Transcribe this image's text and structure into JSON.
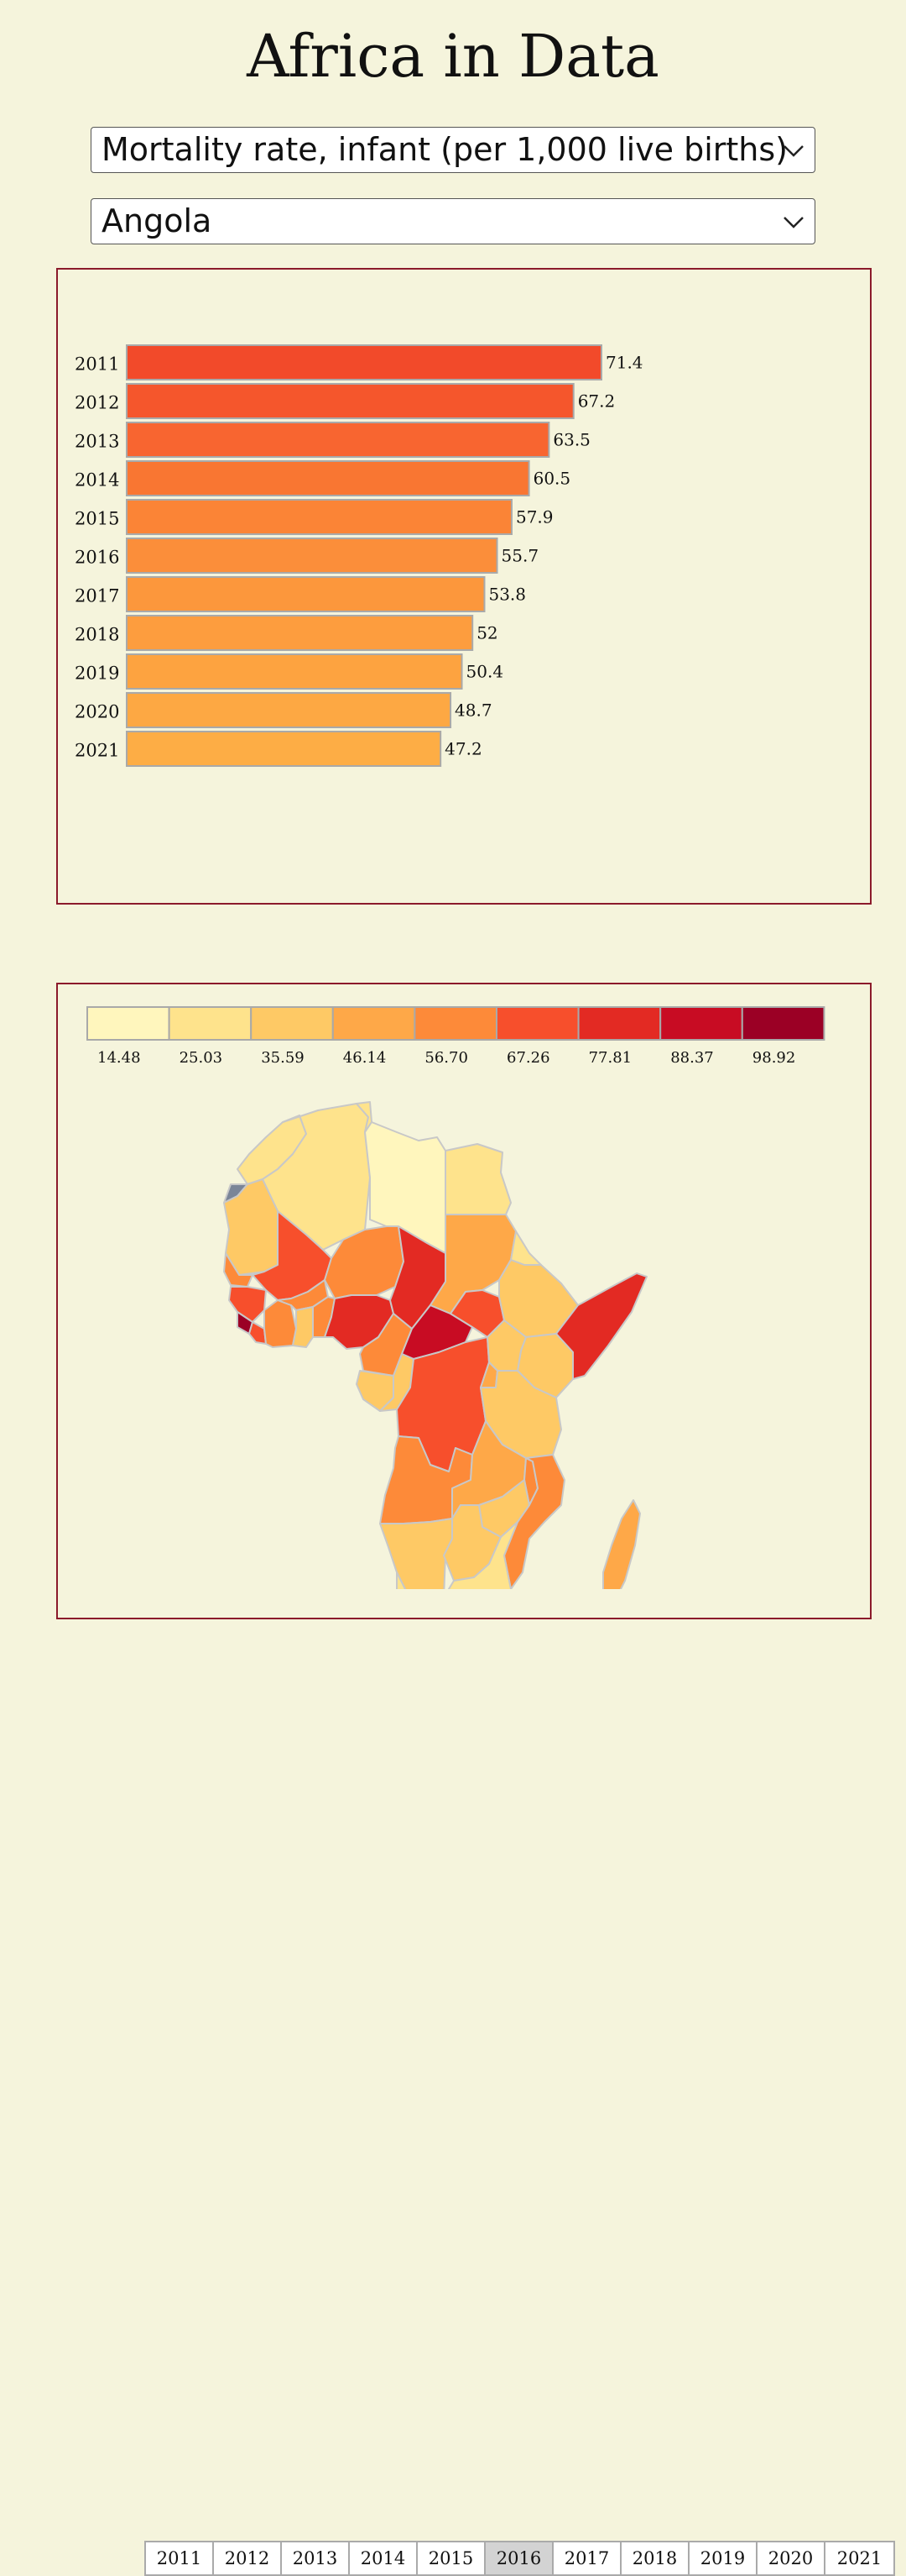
{
  "header": {
    "title": "Africa in Data"
  },
  "controls": {
    "indicator_select": "Mortality rate, infant (per 1,000 live births)",
    "country_select": "Angola"
  },
  "chart_data": [
    {
      "type": "bar",
      "orientation": "horizontal",
      "categories": [
        "2011",
        "2012",
        "2013",
        "2014",
        "2015",
        "2016",
        "2017",
        "2018",
        "2019",
        "2020",
        "2021"
      ],
      "values": [
        71.4,
        67.2,
        63.5,
        60.5,
        57.9,
        55.7,
        53.8,
        52,
        50.4,
        48.7,
        47.2
      ],
      "value_labels": [
        "71.4",
        "67.2",
        "63.5",
        "60.5",
        "57.9",
        "55.7",
        "53.8",
        "52",
        "50.4",
        "48.7",
        "47.2"
      ],
      "title": "",
      "xlabel": "",
      "ylabel": "",
      "xlim": [
        0,
        100
      ],
      "colors": [
        "#f24a2a",
        "#f5562c",
        "#f86530",
        "#f97632",
        "#fb8436",
        "#fb8e3a",
        "#fc973c",
        "#fd9d3e",
        "#fda340",
        "#fda843",
        "#fdad45"
      ],
      "grid": false
    }
  ],
  "map": {
    "legend": {
      "labels": [
        "14.48",
        "25.03",
        "35.59",
        "46.14",
        "56.70",
        "67.26",
        "77.81",
        "88.37",
        "98.92"
      ],
      "colors": [
        "#fff6bd",
        "#fee38c",
        "#fec965",
        "#fea848",
        "#fd8a39",
        "#f74f2c",
        "#e32a23",
        "#c80c23",
        "#9b0025"
      ]
    },
    "year_buttons": [
      "2011",
      "2012",
      "2013",
      "2014",
      "2015",
      "2016",
      "2017",
      "2018",
      "2019",
      "2020",
      "2021"
    ],
    "selected_year": "2016"
  }
}
